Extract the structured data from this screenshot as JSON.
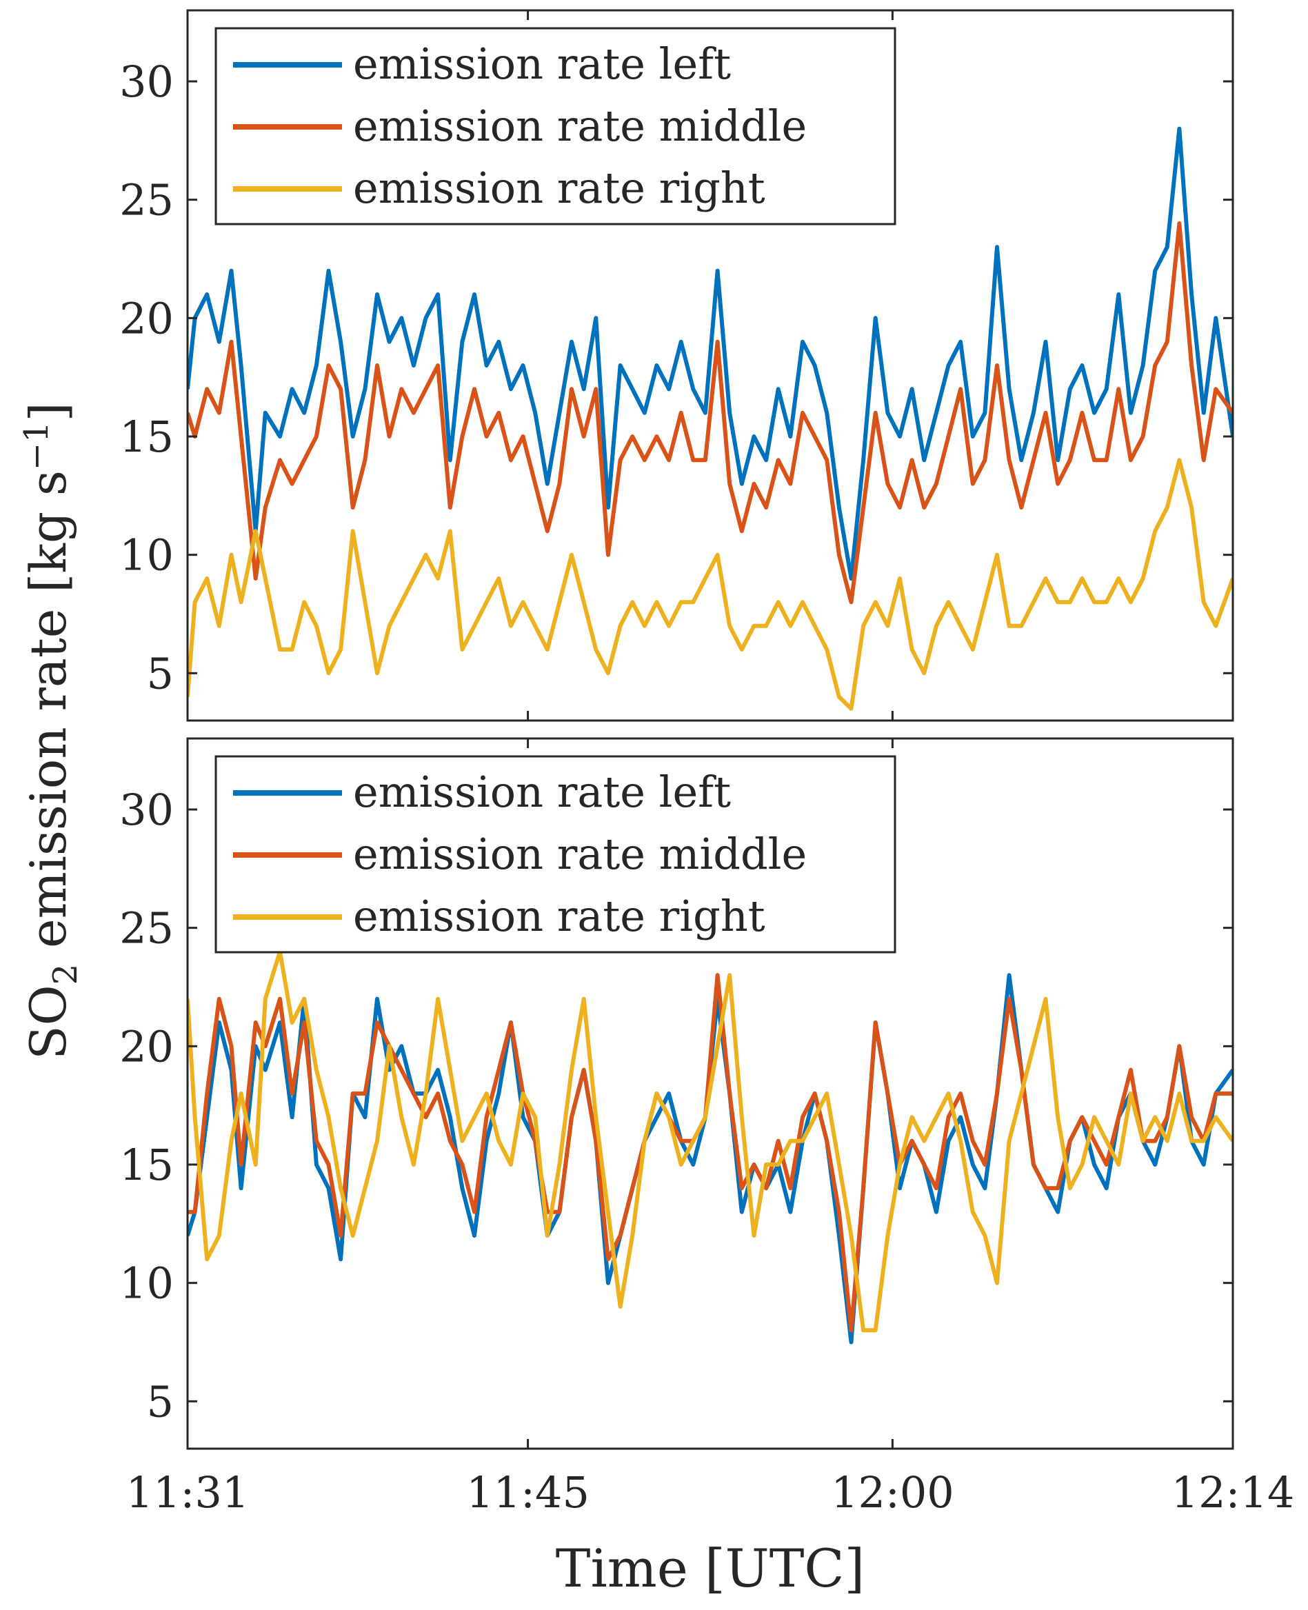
{
  "chart_data": [
    {
      "type": "line",
      "panel": "top",
      "xlim": [
        0,
        43
      ],
      "ylim": [
        3,
        33
      ],
      "yticks": [
        5,
        10,
        15,
        20,
        25,
        30
      ],
      "ytick_labels": [
        "5",
        "10",
        "15",
        "20",
        "25",
        "30"
      ],
      "grid": false,
      "legend_position": "top-left",
      "x_minutes_after_1131": [
        0,
        0.3,
        0.8,
        1.3,
        1.8,
        2.2,
        2.8,
        3.2,
        3.8,
        4.3,
        4.8,
        5.3,
        5.8,
        6.3,
        6.8,
        7.3,
        7.8,
        8.3,
        8.8,
        9.3,
        9.8,
        10.3,
        10.8,
        11.3,
        11.8,
        12.3,
        12.8,
        13.3,
        13.8,
        14.3,
        14.8,
        15.3,
        15.8,
        16.3,
        16.8,
        17.3,
        17.8,
        18.3,
        18.8,
        19.3,
        19.8,
        20.3,
        20.8,
        21.3,
        21.8,
        22.3,
        22.8,
        23.3,
        23.8,
        24.3,
        24.8,
        25.3,
        25.8,
        26.3,
        26.8,
        27.3,
        27.8,
        28.3,
        28.8,
        29.3,
        29.8,
        30.3,
        30.8,
        31.3,
        31.8,
        32.3,
        32.8,
        33.3,
        33.8,
        34.3,
        34.8,
        35.3,
        35.8,
        36.3,
        36.8,
        37.3,
        37.8,
        38.3,
        38.8,
        39.3,
        39.8,
        40.3,
        40.8,
        41.3,
        41.8,
        42.3,
        43
      ],
      "series": [
        {
          "name": "emission rate left",
          "color": "#0072BD",
          "values": [
            17,
            20,
            21,
            19,
            22,
            18,
            11,
            16,
            15,
            17,
            16,
            18,
            22,
            19,
            15,
            17,
            21,
            19,
            20,
            18,
            20,
            21,
            14,
            19,
            21,
            18,
            19,
            17,
            18,
            16,
            13,
            16,
            19,
            17,
            20,
            12,
            18,
            17,
            16,
            18,
            17,
            19,
            17,
            16,
            22,
            16,
            13,
            15,
            14,
            17,
            15,
            19,
            18,
            16,
            12,
            9,
            14,
            20,
            16,
            15,
            17,
            14,
            16,
            18,
            19,
            15,
            16,
            23,
            17,
            14,
            16,
            19,
            14,
            17,
            18,
            16,
            17,
            21,
            16,
            18,
            22,
            23,
            28,
            21,
            16,
            20,
            15
          ]
        },
        {
          "name": "emission rate middle",
          "color": "#D95319",
          "values": [
            16,
            15,
            17,
            16,
            19,
            15,
            9,
            12,
            14,
            13,
            14,
            15,
            18,
            17,
            12,
            14,
            18,
            15,
            17,
            16,
            17,
            18,
            12,
            15,
            17,
            15,
            16,
            14,
            15,
            13,
            11,
            13,
            17,
            15,
            17,
            10,
            14,
            15,
            14,
            15,
            14,
            16,
            14,
            14,
            19,
            13,
            11,
            13,
            12,
            14,
            13,
            16,
            15,
            14,
            10,
            8,
            12,
            16,
            13,
            12,
            14,
            12,
            13,
            15,
            17,
            13,
            14,
            18,
            14,
            12,
            14,
            16,
            13,
            14,
            16,
            14,
            14,
            17,
            14,
            15,
            18,
            19,
            24,
            18,
            14,
            17,
            16
          ]
        },
        {
          "name": "emission rate right",
          "color": "#EDB120",
          "values": [
            4,
            8,
            9,
            7,
            10,
            8,
            11,
            9,
            6,
            6,
            8,
            7,
            5,
            6,
            11,
            8,
            5,
            7,
            8,
            9,
            10,
            9,
            11,
            6,
            7,
            8,
            9,
            7,
            8,
            7,
            6,
            8,
            10,
            8,
            6,
            5,
            7,
            8,
            7,
            8,
            7,
            8,
            8,
            9,
            10,
            7,
            6,
            7,
            7,
            8,
            7,
            8,
            7,
            6,
            4,
            3.5,
            7,
            8,
            7,
            9,
            6,
            5,
            7,
            8,
            7,
            6,
            8,
            10,
            7,
            7,
            8,
            9,
            8,
            8,
            9,
            8,
            8,
            9,
            8,
            9,
            11,
            12,
            14,
            12,
            8,
            7,
            9
          ]
        }
      ]
    },
    {
      "type": "line",
      "panel": "bottom",
      "xlim": [
        0,
        43
      ],
      "ylim": [
        3,
        33
      ],
      "yticks": [
        5,
        10,
        15,
        20,
        25,
        30
      ],
      "ytick_labels": [
        "5",
        "10",
        "15",
        "20",
        "25",
        "30"
      ],
      "xticks": [
        0,
        14,
        29,
        43
      ],
      "xtick_labels": [
        "11:31",
        "11:45",
        "12:00",
        "12:14"
      ],
      "xlabel": "Time [UTC]",
      "ylabel": "SO2 emission rate [kg s-1]",
      "grid": false,
      "legend_position": "top-left",
      "x_minutes_after_1131": [
        0,
        0.3,
        0.8,
        1.3,
        1.8,
        2.2,
        2.8,
        3.2,
        3.8,
        4.3,
        4.8,
        5.3,
        5.8,
        6.3,
        6.8,
        7.3,
        7.8,
        8.3,
        8.8,
        9.3,
        9.8,
        10.3,
        10.8,
        11.3,
        11.8,
        12.3,
        12.8,
        13.3,
        13.8,
        14.3,
        14.8,
        15.3,
        15.8,
        16.3,
        16.8,
        17.3,
        17.8,
        18.3,
        18.8,
        19.3,
        19.8,
        20.3,
        20.8,
        21.3,
        21.8,
        22.3,
        22.8,
        23.3,
        23.8,
        24.3,
        24.8,
        25.3,
        25.8,
        26.3,
        26.8,
        27.3,
        27.8,
        28.3,
        28.8,
        29.3,
        29.8,
        30.3,
        30.8,
        31.3,
        31.8,
        32.3,
        32.8,
        33.3,
        33.8,
        34.3,
        34.8,
        35.3,
        35.8,
        36.3,
        36.8,
        37.3,
        37.8,
        38.3,
        38.8,
        39.3,
        39.8,
        40.3,
        40.8,
        41.3,
        41.8,
        42.3,
        43
      ],
      "series": [
        {
          "name": "emission rate left",
          "color": "#0072BD",
          "values": [
            12,
            13,
            17,
            21,
            19,
            14,
            20,
            19,
            21,
            17,
            22,
            15,
            14,
            11,
            18,
            17,
            22,
            19,
            20,
            18,
            18,
            19,
            17,
            14,
            12,
            16,
            18,
            21,
            17,
            16,
            12,
            13,
            17,
            19,
            16,
            10,
            12,
            14,
            16,
            17,
            18,
            16,
            15,
            17,
            22,
            18,
            13,
            15,
            14,
            15,
            13,
            16,
            18,
            16,
            12,
            7.5,
            14,
            21,
            18,
            14,
            16,
            15,
            13,
            16,
            17,
            15,
            14,
            18,
            23,
            19,
            15,
            14,
            13,
            16,
            17,
            15,
            14,
            17,
            18,
            16,
            15,
            17,
            20,
            16,
            15,
            18,
            19
          ]
        },
        {
          "name": "emission rate middle",
          "color": "#D95319",
          "values": [
            13,
            13,
            18,
            22,
            20,
            15,
            21,
            20,
            22,
            18,
            21,
            16,
            15,
            12,
            18,
            18,
            21,
            20,
            19,
            18,
            17,
            18,
            16,
            15,
            13,
            17,
            19,
            21,
            18,
            16,
            13,
            13,
            17,
            19,
            16,
            11,
            12,
            14,
            16,
            18,
            17,
            16,
            16,
            17,
            23,
            18,
            14,
            15,
            14,
            16,
            14,
            17,
            18,
            16,
            13,
            8,
            14,
            21,
            18,
            15,
            16,
            15,
            14,
            17,
            18,
            16,
            15,
            18,
            22,
            19,
            15,
            14,
            14,
            16,
            17,
            16,
            15,
            17,
            19,
            16,
            16,
            17,
            20,
            17,
            16,
            18,
            18
          ]
        },
        {
          "name": "emission rate right",
          "color": "#EDB120",
          "values": [
            22,
            17,
            11,
            12,
            16,
            18,
            15,
            22,
            24,
            21,
            22,
            19,
            17,
            14,
            12,
            14,
            16,
            20,
            17,
            15,
            18,
            22,
            19,
            16,
            17,
            18,
            16,
            15,
            18,
            17,
            12,
            15,
            19,
            22,
            17,
            13,
            9,
            12,
            16,
            18,
            17,
            15,
            16,
            17,
            20,
            23,
            17,
            12,
            15,
            15,
            16,
            16,
            17,
            18,
            15,
            12,
            8,
            8,
            12,
            15,
            17,
            16,
            17,
            18,
            16,
            13,
            12,
            10,
            16,
            18,
            20,
            22,
            17,
            14,
            15,
            17,
            16,
            15,
            18,
            16,
            17,
            16,
            18,
            16,
            16,
            17,
            16
          ]
        }
      ]
    }
  ]
}
